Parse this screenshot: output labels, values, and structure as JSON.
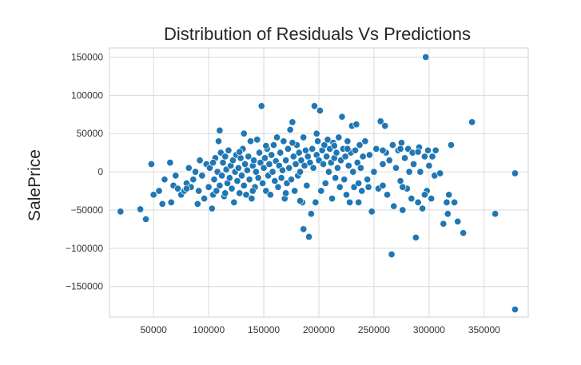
{
  "chart_data": {
    "type": "scatter",
    "title": "Distribution of Residuals Vs Predictions",
    "xlabel": "",
    "ylabel": "SalePrice",
    "xlim": [
      10000,
      390000
    ],
    "ylim": [
      -190000,
      162000
    ],
    "x_ticks": [
      50000,
      100000,
      150000,
      200000,
      250000,
      300000,
      350000
    ],
    "y_ticks": [
      150000,
      100000,
      50000,
      0,
      -50000,
      -100000,
      -150000
    ],
    "x_tick_labels": [
      "50000",
      "100000",
      "150000",
      "200000",
      "250000",
      "300000",
      "350000"
    ],
    "y_tick_labels": [
      "150000",
      "100000",
      "50000",
      "0",
      "−50000",
      "−100000",
      "−150000"
    ],
    "grid": true,
    "legend": "none",
    "color": "#1f77b4",
    "points": [
      [
        20000,
        -52000
      ],
      [
        38000,
        -49000
      ],
      [
        43000,
        -62000
      ],
      [
        48000,
        10000
      ],
      [
        50000,
        -30000
      ],
      [
        55000,
        -25000
      ],
      [
        58000,
        -42000
      ],
      [
        60000,
        -10000
      ],
      [
        65000,
        12000
      ],
      [
        66000,
        -40000
      ],
      [
        68000,
        -18000
      ],
      [
        70000,
        -5000
      ],
      [
        72000,
        -22000
      ],
      [
        75000,
        -30000
      ],
      [
        78000,
        -25000
      ],
      [
        80000,
        -15000
      ],
      [
        82000,
        5000
      ],
      [
        84000,
        -20000
      ],
      [
        86000,
        -10000
      ],
      [
        88000,
        0
      ],
      [
        90000,
        -42000
      ],
      [
        91000,
        -25000
      ],
      [
        92000,
        15000
      ],
      [
        94000,
        -5000
      ],
      [
        96000,
        -35000
      ],
      [
        98000,
        10000
      ],
      [
        100000,
        -20000
      ],
      [
        101000,
        5000
      ],
      [
        103000,
        -48000
      ],
      [
        104000,
        -30000
      ],
      [
        105000,
        -10000
      ],
      [
        106000,
        18000
      ],
      [
        107000,
        -25000
      ],
      [
        108000,
        0
      ],
      [
        109000,
        40000
      ],
      [
        110000,
        54000
      ],
      [
        110000,
        -18000
      ],
      [
        111000,
        25000
      ],
      [
        112000,
        -5000
      ],
      [
        113000,
        12000
      ],
      [
        114000,
        -32000
      ],
      [
        115000,
        20000
      ],
      [
        116000,
        3000
      ],
      [
        117000,
        -15000
      ],
      [
        118000,
        28000
      ],
      [
        119000,
        -8000
      ],
      [
        120000,
        8000
      ],
      [
        121000,
        -22000
      ],
      [
        122000,
        15000
      ],
      [
        123000,
        -40000
      ],
      [
        124000,
        0
      ],
      [
        125000,
        22000
      ],
      [
        126000,
        -12000
      ],
      [
        127000,
        5000
      ],
      [
        128000,
        -28000
      ],
      [
        129000,
        18000
      ],
      [
        130000,
        -5000
      ],
      [
        131000,
        30000
      ],
      [
        132000,
        50000
      ],
      [
        132000,
        -18000
      ],
      [
        133000,
        10000
      ],
      [
        134000,
        -30000
      ],
      [
        135000,
        2000
      ],
      [
        136000,
        20000
      ],
      [
        137000,
        -10000
      ],
      [
        138000,
        40000
      ],
      [
        139000,
        -35000
      ],
      [
        140000,
        8000
      ],
      [
        141000,
        15000
      ],
      [
        142000,
        -20000
      ],
      [
        143000,
        0
      ],
      [
        144000,
        42000
      ],
      [
        145000,
        -8000
      ],
      [
        146000,
        25000
      ],
      [
        147000,
        12000
      ],
      [
        148000,
        86000
      ],
      [
        149000,
        -15000
      ],
      [
        150000,
        5000
      ],
      [
        151000,
        18000
      ],
      [
        152000,
        -25000
      ],
      [
        153000,
        30000
      ],
      [
        154000,
        -5000
      ],
      [
        155000,
        10000
      ],
      [
        156000,
        -30000
      ],
      [
        157000,
        22000
      ],
      [
        158000,
        0
      ],
      [
        159000,
        35000
      ],
      [
        160000,
        -12000
      ],
      [
        161000,
        14000
      ],
      [
        162000,
        45000
      ],
      [
        163000,
        -20000
      ],
      [
        164000,
        8000
      ],
      [
        165000,
        25000
      ],
      [
        166000,
        -8000
      ],
      [
        167000,
        2000
      ],
      [
        168000,
        40000
      ],
      [
        169000,
        -35000
      ],
      [
        170000,
        15000
      ],
      [
        171000,
        -15000
      ],
      [
        172000,
        30000
      ],
      [
        173000,
        5000
      ],
      [
        174000,
        55000
      ],
      [
        175000,
        -10000
      ],
      [
        176000,
        65000
      ],
      [
        177000,
        20000
      ],
      [
        178000,
        -25000
      ],
      [
        179000,
        10000
      ],
      [
        180000,
        35000
      ],
      [
        181000,
        -5000
      ],
      [
        182000,
        25000
      ],
      [
        183000,
        0
      ],
      [
        184000,
        15000
      ],
      [
        185000,
        -40000
      ],
      [
        186000,
        45000
      ],
      [
        186000,
        -75000
      ],
      [
        187000,
        8000
      ],
      [
        188000,
        28000
      ],
      [
        189000,
        -18000
      ],
      [
        190000,
        20000
      ],
      [
        191000,
        -85000
      ],
      [
        192000,
        12000
      ],
      [
        193000,
        -55000
      ],
      [
        194000,
        30000
      ],
      [
        195000,
        5000
      ],
      [
        196000,
        86000
      ],
      [
        197000,
        -40000
      ],
      [
        198000,
        22000
      ],
      [
        199000,
        40000
      ],
      [
        200000,
        15000
      ],
      [
        201000,
        80000
      ],
      [
        202000,
        -25000
      ],
      [
        203000,
        28000
      ],
      [
        204000,
        10000
      ],
      [
        205000,
        35000
      ],
      [
        206000,
        -15000
      ],
      [
        207000,
        20000
      ],
      [
        208000,
        42000
      ],
      [
        209000,
        0
      ],
      [
        210000,
        30000
      ],
      [
        211000,
        12000
      ],
      [
        212000,
        -35000
      ],
      [
        213000,
        38000
      ],
      [
        214000,
        18000
      ],
      [
        215000,
        -8000
      ],
      [
        216000,
        25000
      ],
      [
        217000,
        5000
      ],
      [
        218000,
        45000
      ],
      [
        219000,
        -20000
      ],
      [
        220000,
        15000
      ],
      [
        221000,
        72000
      ],
      [
        222000,
        30000
      ],
      [
        223000,
        -10000
      ],
      [
        224000,
        20000
      ],
      [
        225000,
        -30000
      ],
      [
        226000,
        40000
      ],
      [
        227000,
        8000
      ],
      [
        228000,
        -40000
      ],
      [
        229000,
        25000
      ],
      [
        230000,
        60000
      ],
      [
        231000,
        0
      ],
      [
        232000,
        -20000
      ],
      [
        233000,
        28000
      ],
      [
        234000,
        62000
      ],
      [
        235000,
        12000
      ],
      [
        236000,
        -15000
      ],
      [
        237000,
        35000
      ],
      [
        238000,
        5000
      ],
      [
        239000,
        -25000
      ],
      [
        240000,
        20000
      ],
      [
        242000,
        40000
      ],
      [
        244000,
        -10000
      ],
      [
        246000,
        22000
      ],
      [
        248000,
        -52000
      ],
      [
        250000,
        0
      ],
      [
        252000,
        30000
      ],
      [
        254000,
        -22000
      ],
      [
        256000,
        66000
      ],
      [
        258000,
        10000
      ],
      [
        260000,
        60000
      ],
      [
        261000,
        25000
      ],
      [
        262000,
        -30000
      ],
      [
        264000,
        15000
      ],
      [
        266000,
        -108000
      ],
      [
        267000,
        35000
      ],
      [
        268000,
        -45000
      ],
      [
        270000,
        5000
      ],
      [
        272000,
        28000
      ],
      [
        274000,
        -12000
      ],
      [
        275000,
        38000
      ],
      [
        276000,
        -50000
      ],
      [
        278000,
        18000
      ],
      [
        280000,
        -22000
      ],
      [
        281000,
        30000
      ],
      [
        282000,
        0
      ],
      [
        284000,
        -35000
      ],
      [
        285000,
        25000
      ],
      [
        286000,
        10000
      ],
      [
        288000,
        -86000
      ],
      [
        290000,
        -40000
      ],
      [
        291000,
        32000
      ],
      [
        292000,
        0
      ],
      [
        294000,
        -48000
      ],
      [
        296000,
        20000
      ],
      [
        297000,
        150000
      ],
      [
        298000,
        -25000
      ],
      [
        299000,
        28000
      ],
      [
        300000,
        8000
      ],
      [
        302000,
        -35000
      ],
      [
        303000,
        20000
      ],
      [
        305000,
        -5000
      ],
      [
        306000,
        28000
      ],
      [
        310000,
        -2000
      ],
      [
        313000,
        -68000
      ],
      [
        316000,
        -40000
      ],
      [
        317000,
        -55000
      ],
      [
        318000,
        -30000
      ],
      [
        320000,
        35000
      ],
      [
        323000,
        -40000
      ],
      [
        326000,
        -65000
      ],
      [
        331000,
        -80000
      ],
      [
        339000,
        65000
      ],
      [
        360000,
        -55000
      ],
      [
        378000,
        -2000
      ],
      [
        378000,
        -180000
      ],
      [
        80000,
        -22000
      ],
      [
        115000,
        -28000
      ],
      [
        140000,
        -25000
      ],
      [
        170000,
        -28000
      ],
      [
        183000,
        -38000
      ],
      [
        236000,
        -40000
      ],
      [
        245000,
        -20000
      ],
      [
        258000,
        -18000
      ],
      [
        276000,
        -20000
      ],
      [
        296000,
        -30000
      ],
      [
        104000,
        12000
      ],
      [
        128000,
        26000
      ],
      [
        152000,
        34000
      ],
      [
        176000,
        38000
      ],
      [
        198000,
        50000
      ],
      [
        214000,
        34000
      ],
      [
        226000,
        30000
      ],
      [
        258000,
        28000
      ],
      [
        274000,
        30000
      ],
      [
        290000,
        26000
      ]
    ]
  }
}
